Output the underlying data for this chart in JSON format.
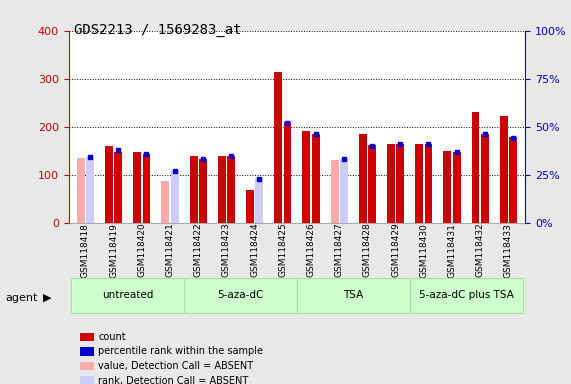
{
  "title": "GDS2213 / 1569283_at",
  "samples": [
    "GSM118418",
    "GSM118419",
    "GSM118420",
    "GSM118421",
    "GSM118422",
    "GSM118423",
    "GSM118424",
    "GSM118425",
    "GSM118426",
    "GSM118427",
    "GSM118428",
    "GSM118429",
    "GSM118430",
    "GSM118431",
    "GSM118432",
    "GSM118433"
  ],
  "count": [
    null,
    160,
    147,
    null,
    138,
    140,
    68,
    315,
    192,
    null,
    185,
    165,
    165,
    150,
    230,
    222
  ],
  "count_absent": [
    135,
    null,
    null,
    87,
    null,
    null,
    null,
    null,
    null,
    130,
    null,
    null,
    null,
    null,
    null,
    null
  ],
  "rank": [
    null,
    148,
    144,
    null,
    133,
    140,
    null,
    210,
    185,
    null,
    162,
    163,
    165,
    148,
    185,
    178
  ],
  "rank_absent": [
    137,
    null,
    null,
    109,
    null,
    null,
    93,
    null,
    null,
    133,
    null,
    null,
    null,
    null,
    null,
    null
  ],
  "percentile": [
    null,
    38,
    36,
    null,
    33,
    35,
    null,
    52,
    46,
    null,
    40,
    41,
    41,
    37,
    46,
    44
  ],
  "percentile_absent": [
    34,
    null,
    null,
    27,
    null,
    null,
    23,
    null,
    null,
    33,
    null,
    null,
    null,
    null,
    null,
    null
  ],
  "agents": [
    {
      "label": "untreated",
      "start": 0,
      "end": 4
    },
    {
      "label": "5-aza-dC",
      "start": 4,
      "end": 8
    },
    {
      "label": "TSA",
      "start": 8,
      "end": 12
    },
    {
      "label": "5-aza-dC plus TSA",
      "start": 12,
      "end": 16
    }
  ],
  "agent_color": "#ccffcc",
  "agent_border": "#aaddaa",
  "ylim_left": [
    0,
    400
  ],
  "ylim_right": [
    0,
    100
  ],
  "bar_width": 0.28,
  "bar_gap": 0.05,
  "color_count": "#cc0000",
  "color_count_absent": "#ffaaaa",
  "color_rank_absent": "#ccccff",
  "color_percentile": "#0000cc",
  "bg_color": "#e8e8e8",
  "plot_bg": "#ffffff",
  "left_tick_color": "#cc0000",
  "right_tick_color": "#0000cc",
  "grid_color": "black",
  "right_yticks": [
    0,
    25,
    50,
    75,
    100
  ],
  "right_yticklabels": [
    "0%",
    "25%",
    "50%",
    "75%",
    "100%"
  ]
}
